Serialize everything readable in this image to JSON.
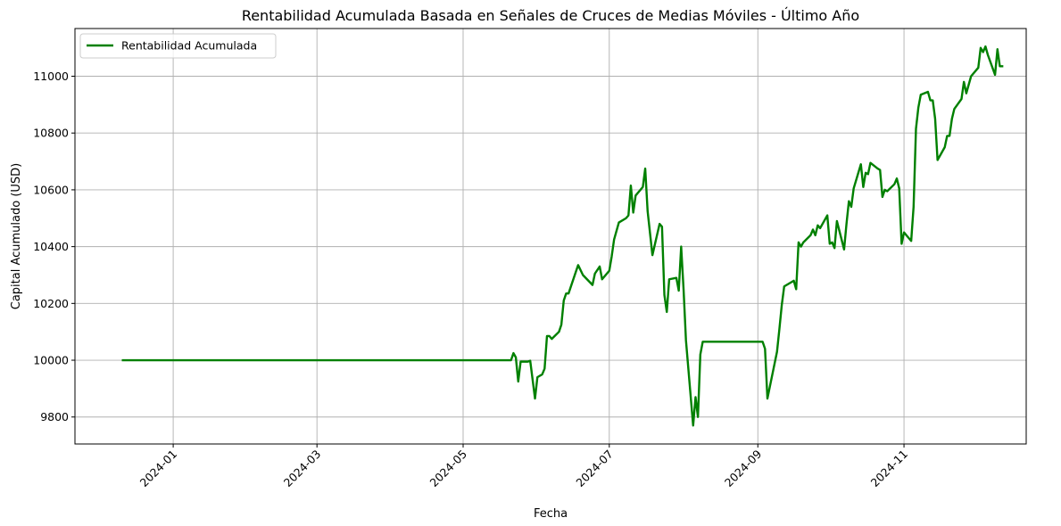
{
  "chart_data": {
    "type": "line",
    "title": "Rentabilidad Acumulada Basada en Señales de Cruces de Medias Móviles - Último Año",
    "xlabel": "Fecha",
    "ylabel": "Capital Acumulado (USD)",
    "grid": true,
    "legend_position": "top-left",
    "xlim": [
      "2023-11-21",
      "2024-12-22"
    ],
    "ylim": [
      9705,
      11168
    ],
    "x_ticks": [
      "2024-01",
      "2024-03",
      "2024-05",
      "2024-07",
      "2024-09",
      "2024-11"
    ],
    "y_ticks": [
      9800,
      10000,
      10200,
      10400,
      10600,
      10800,
      11000
    ],
    "series": [
      {
        "name": "Rentabilidad Acumulada",
        "color": "#008000",
        "points": [
          [
            "2023-12-11",
            10000
          ],
          [
            "2024-05-21",
            10000
          ],
          [
            "2024-05-22",
            10025
          ],
          [
            "2024-05-23",
            10010
          ],
          [
            "2024-05-24",
            9925
          ],
          [
            "2024-05-25",
            9995
          ],
          [
            "2024-05-28",
            9995
          ],
          [
            "2024-05-29",
            9998
          ],
          [
            "2024-05-31",
            9865
          ],
          [
            "2024-06-01",
            9940
          ],
          [
            "2024-06-03",
            9950
          ],
          [
            "2024-06-04",
            9970
          ],
          [
            "2024-06-05",
            10085
          ],
          [
            "2024-06-06",
            10085
          ],
          [
            "2024-06-07",
            10075
          ],
          [
            "2024-06-10",
            10100
          ],
          [
            "2024-06-11",
            10125
          ],
          [
            "2024-06-12",
            10210
          ],
          [
            "2024-06-13",
            10235
          ],
          [
            "2024-06-14",
            10235
          ],
          [
            "2024-06-17",
            10310
          ],
          [
            "2024-06-18",
            10335
          ],
          [
            "2024-06-20",
            10300
          ],
          [
            "2024-06-24",
            10265
          ],
          [
            "2024-06-25",
            10305
          ],
          [
            "2024-06-27",
            10330
          ],
          [
            "2024-06-28",
            10285
          ],
          [
            "2024-07-01",
            10315
          ],
          [
            "2024-07-02",
            10365
          ],
          [
            "2024-07-03",
            10425
          ],
          [
            "2024-07-05",
            10485
          ],
          [
            "2024-07-08",
            10500
          ],
          [
            "2024-07-09",
            10510
          ],
          [
            "2024-07-10",
            10615
          ],
          [
            "2024-07-11",
            10520
          ],
          [
            "2024-07-12",
            10580
          ],
          [
            "2024-07-15",
            10610
          ],
          [
            "2024-07-16",
            10675
          ],
          [
            "2024-07-17",
            10525
          ],
          [
            "2024-07-19",
            10370
          ],
          [
            "2024-07-22",
            10480
          ],
          [
            "2024-07-23",
            10470
          ],
          [
            "2024-07-24",
            10230
          ],
          [
            "2024-07-25",
            10170
          ],
          [
            "2024-07-26",
            10285
          ],
          [
            "2024-07-29",
            10290
          ],
          [
            "2024-07-30",
            10245
          ],
          [
            "2024-07-31",
            10400
          ],
          [
            "2024-08-01",
            10250
          ],
          [
            "2024-08-02",
            10070
          ],
          [
            "2024-08-05",
            9770
          ],
          [
            "2024-08-06",
            9870
          ],
          [
            "2024-08-07",
            9800
          ],
          [
            "2024-08-08",
            10020
          ],
          [
            "2024-08-09",
            10065
          ],
          [
            "2024-09-03",
            10065
          ],
          [
            "2024-09-04",
            10040
          ],
          [
            "2024-09-05",
            9865
          ],
          [
            "2024-09-09",
            10030
          ],
          [
            "2024-09-10",
            10110
          ],
          [
            "2024-09-11",
            10195
          ],
          [
            "2024-09-12",
            10260
          ],
          [
            "2024-09-16",
            10280
          ],
          [
            "2024-09-17",
            10250
          ],
          [
            "2024-09-18",
            10415
          ],
          [
            "2024-09-19",
            10400
          ],
          [
            "2024-09-20",
            10415
          ],
          [
            "2024-09-23",
            10440
          ],
          [
            "2024-09-24",
            10460
          ],
          [
            "2024-09-25",
            10440
          ],
          [
            "2024-09-26",
            10475
          ],
          [
            "2024-09-27",
            10465
          ],
          [
            "2024-09-30",
            10510
          ],
          [
            "2024-10-01",
            10410
          ],
          [
            "2024-10-02",
            10415
          ],
          [
            "2024-10-03",
            10395
          ],
          [
            "2024-10-04",
            10490
          ],
          [
            "2024-10-07",
            10390
          ],
          [
            "2024-10-08",
            10480
          ],
          [
            "2024-10-09",
            10560
          ],
          [
            "2024-10-10",
            10540
          ],
          [
            "2024-10-11",
            10605
          ],
          [
            "2024-10-14",
            10690
          ],
          [
            "2024-10-15",
            10610
          ],
          [
            "2024-10-16",
            10660
          ],
          [
            "2024-10-17",
            10655
          ],
          [
            "2024-10-18",
            10695
          ],
          [
            "2024-10-21",
            10675
          ],
          [
            "2024-10-22",
            10670
          ],
          [
            "2024-10-23",
            10575
          ],
          [
            "2024-10-24",
            10600
          ],
          [
            "2024-10-25",
            10595
          ],
          [
            "2024-10-28",
            10620
          ],
          [
            "2024-10-29",
            10640
          ],
          [
            "2024-10-30",
            10605
          ],
          [
            "2024-10-31",
            10410
          ],
          [
            "2024-11-01",
            10450
          ],
          [
            "2024-11-04",
            10420
          ],
          [
            "2024-11-05",
            10540
          ],
          [
            "2024-11-06",
            10815
          ],
          [
            "2024-11-07",
            10890
          ],
          [
            "2024-11-08",
            10935
          ],
          [
            "2024-11-11",
            10945
          ],
          [
            "2024-11-12",
            10915
          ],
          [
            "2024-11-13",
            10915
          ],
          [
            "2024-11-14",
            10850
          ],
          [
            "2024-11-15",
            10705
          ],
          [
            "2024-11-18",
            10750
          ],
          [
            "2024-11-19",
            10790
          ],
          [
            "2024-11-20",
            10790
          ],
          [
            "2024-11-21",
            10850
          ],
          [
            "2024-11-22",
            10885
          ],
          [
            "2024-11-25",
            10920
          ],
          [
            "2024-11-26",
            10980
          ],
          [
            "2024-11-27",
            10940
          ],
          [
            "2024-11-29",
            11000
          ],
          [
            "2024-12-02",
            11030
          ],
          [
            "2024-12-03",
            11100
          ],
          [
            "2024-12-04",
            11085
          ],
          [
            "2024-12-05",
            11105
          ],
          [
            "2024-12-06",
            11075
          ],
          [
            "2024-12-09",
            11005
          ],
          [
            "2024-12-10",
            11095
          ],
          [
            "2024-12-11",
            11035
          ],
          [
            "2024-12-12",
            11035
          ]
        ]
      }
    ]
  }
}
